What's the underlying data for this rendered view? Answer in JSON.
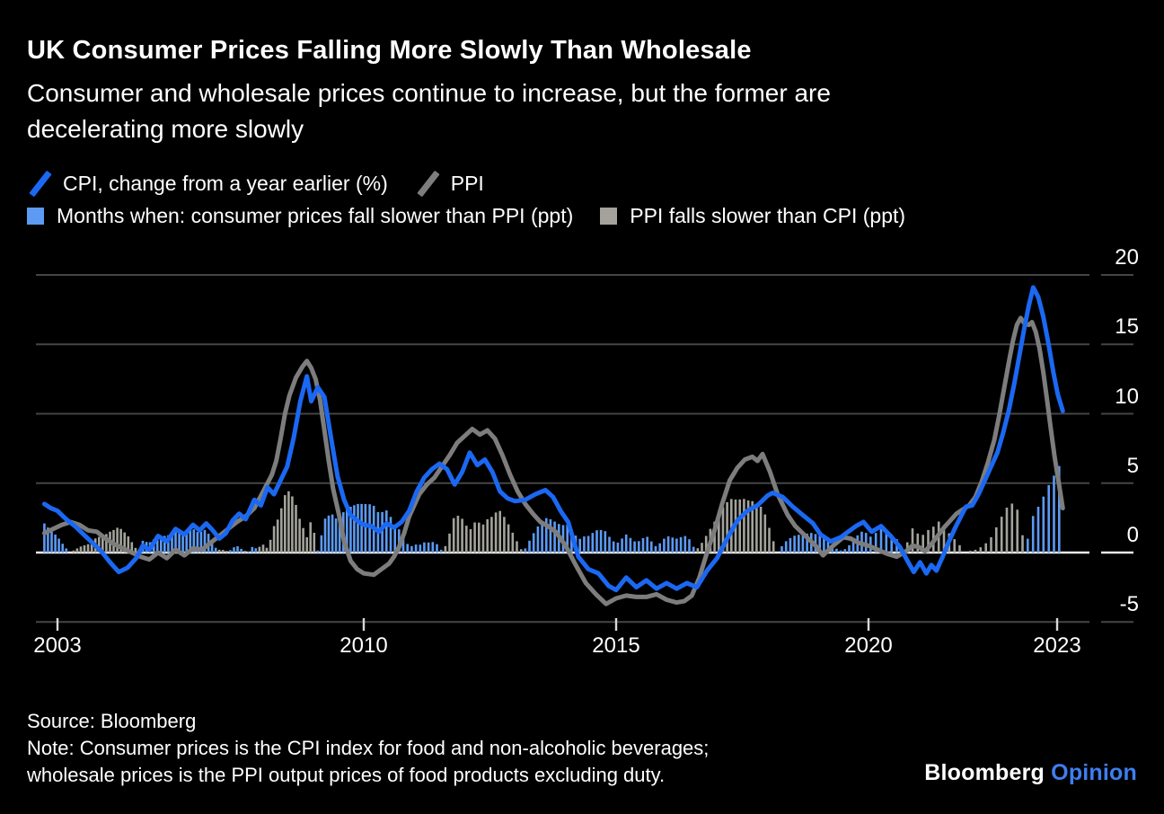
{
  "header": {
    "title": "UK Consumer Prices Falling More Slowly Than Wholesale",
    "subtitle_line1": "Consumer and wholesale prices continue to increase, but the former are",
    "subtitle_line2": "decelerating more slowly"
  },
  "legend": {
    "cpi_line_label": "CPI, change from a year earlier (%)",
    "ppi_line_label": "PPI",
    "cpi_bar_label": "Months when: consumer prices fall slower than PPI (ppt)",
    "ppi_bar_label": "PPI falls slower than CPI (ppt)"
  },
  "colors": {
    "cpi_line": "#1b68f2",
    "ppi_line": "#7d7d7d",
    "cpi_bar": "#5c9af3",
    "ppi_bar": "#a3a39c",
    "grid": "#454545",
    "zero_line": "#e8e8e8",
    "tick": "#d9d9d9",
    "text": "#ffffff",
    "opinion_blue": "#3e7ef0"
  },
  "chart_data": {
    "type": "line+bar",
    "title": "UK Consumer Prices Falling More Slowly Than Wholesale",
    "y_axis": {
      "ticks": [
        20,
        15,
        10,
        5,
        0,
        -5
      ],
      "ylim": [
        -6.5,
        20.5
      ],
      "unit": "%",
      "grid": true,
      "side": "right"
    },
    "x_axis": {
      "ticks": [
        2003,
        2010,
        2015,
        2020,
        2023
      ],
      "range": [
        2002.7,
        2023.1
      ],
      "resolution": "monthly"
    },
    "series": [
      {
        "id": "cpi",
        "name": "CPI, change from a year earlier (%)",
        "type": "line",
        "color": "#1b68f2",
        "points": [
          [
            2002.7,
            3.5
          ],
          [
            2002.85,
            3.2
          ],
          [
            2003.0,
            3.0
          ],
          [
            2003.2,
            2.4
          ],
          [
            2003.4,
            1.9
          ],
          [
            2003.6,
            1.3
          ],
          [
            2003.8,
            0.7
          ],
          [
            2004.0,
            0.1
          ],
          [
            2004.2,
            -0.7
          ],
          [
            2004.4,
            -1.4
          ],
          [
            2004.6,
            -1.1
          ],
          [
            2004.8,
            -0.4
          ],
          [
            2004.95,
            0.5
          ],
          [
            2005.1,
            0.2
          ],
          [
            2005.3,
            1.2
          ],
          [
            2005.5,
            0.8
          ],
          [
            2005.7,
            1.7
          ],
          [
            2005.9,
            1.3
          ],
          [
            2006.1,
            2.0
          ],
          [
            2006.25,
            1.6
          ],
          [
            2006.4,
            2.1
          ],
          [
            2006.55,
            1.6
          ],
          [
            2006.7,
            1.0
          ],
          [
            2006.85,
            1.4
          ],
          [
            2007.0,
            2.3
          ],
          [
            2007.15,
            2.8
          ],
          [
            2007.3,
            2.4
          ],
          [
            2007.5,
            3.8
          ],
          [
            2007.65,
            3.4
          ],
          [
            2007.8,
            4.7
          ],
          [
            2007.95,
            4.2
          ],
          [
            2008.1,
            5.2
          ],
          [
            2008.25,
            6.2
          ],
          [
            2008.4,
            8.3
          ],
          [
            2008.55,
            10.9
          ],
          [
            2008.7,
            12.7
          ],
          [
            2008.8,
            10.9
          ],
          [
            2008.95,
            11.9
          ],
          [
            2009.1,
            11.2
          ],
          [
            2009.25,
            8.3
          ],
          [
            2009.4,
            5.5
          ],
          [
            2009.55,
            3.8
          ],
          [
            2009.7,
            2.7
          ],
          [
            2009.85,
            2.3
          ],
          [
            2010.0,
            2.0
          ],
          [
            2010.15,
            1.9
          ],
          [
            2010.3,
            1.5
          ],
          [
            2010.45,
            2.1
          ],
          [
            2010.6,
            1.8
          ],
          [
            2010.75,
            2.2
          ],
          [
            2010.9,
            3.0
          ],
          [
            2011.05,
            4.4
          ],
          [
            2011.2,
            5.4
          ],
          [
            2011.35,
            6.0
          ],
          [
            2011.5,
            6.4
          ],
          [
            2011.65,
            6.0
          ],
          [
            2011.8,
            4.9
          ],
          [
            2011.95,
            5.8
          ],
          [
            2012.1,
            7.2
          ],
          [
            2012.25,
            6.3
          ],
          [
            2012.4,
            6.7
          ],
          [
            2012.55,
            5.8
          ],
          [
            2012.7,
            4.4
          ],
          [
            2012.85,
            3.9
          ],
          [
            2013.0,
            3.7
          ],
          [
            2013.2,
            3.8
          ],
          [
            2013.4,
            4.2
          ],
          [
            2013.6,
            4.5
          ],
          [
            2013.75,
            4.0
          ],
          [
            2013.9,
            3.0
          ],
          [
            2014.05,
            2.2
          ],
          [
            2014.25,
            -0.3
          ],
          [
            2014.45,
            -1.2
          ],
          [
            2014.65,
            -1.5
          ],
          [
            2014.85,
            -2.4
          ],
          [
            2015.0,
            -2.7
          ],
          [
            2015.2,
            -1.8
          ],
          [
            2015.4,
            -2.5
          ],
          [
            2015.6,
            -2.0
          ],
          [
            2015.8,
            -2.6
          ],
          [
            2016.0,
            -2.2
          ],
          [
            2016.2,
            -2.6
          ],
          [
            2016.4,
            -2.2
          ],
          [
            2016.6,
            -2.5
          ],
          [
            2016.8,
            -1.3
          ],
          [
            2017.0,
            -0.4
          ],
          [
            2017.2,
            1.0
          ],
          [
            2017.4,
            2.3
          ],
          [
            2017.6,
            3.0
          ],
          [
            2017.8,
            3.4
          ],
          [
            2018.0,
            4.1
          ],
          [
            2018.1,
            4.3
          ],
          [
            2018.3,
            4.0
          ],
          [
            2018.5,
            3.3
          ],
          [
            2018.7,
            2.7
          ],
          [
            2018.9,
            2.1
          ],
          [
            2019.05,
            1.3
          ],
          [
            2019.25,
            0.8
          ],
          [
            2019.45,
            1.1
          ],
          [
            2019.6,
            1.5
          ],
          [
            2019.75,
            1.9
          ],
          [
            2019.9,
            2.2
          ],
          [
            2020.05,
            1.5
          ],
          [
            2020.2,
            1.9
          ],
          [
            2020.35,
            1.2
          ],
          [
            2020.5,
            0.4
          ],
          [
            2020.62,
            -0.6
          ],
          [
            2020.72,
            -1.4
          ],
          [
            2020.82,
            -0.7
          ],
          [
            2020.92,
            -1.5
          ],
          [
            2021.0,
            -0.9
          ],
          [
            2021.08,
            -1.3
          ],
          [
            2021.18,
            -0.3
          ],
          [
            2021.28,
            0.8
          ],
          [
            2021.38,
            1.8
          ],
          [
            2021.47,
            2.6
          ],
          [
            2021.55,
            3.3
          ],
          [
            2021.65,
            3.4
          ],
          [
            2021.75,
            4.2
          ],
          [
            2021.85,
            5.2
          ],
          [
            2021.95,
            6.2
          ],
          [
            2022.05,
            7.2
          ],
          [
            2022.14,
            8.6
          ],
          [
            2022.23,
            10.2
          ],
          [
            2022.32,
            12.2
          ],
          [
            2022.4,
            14.2
          ],
          [
            2022.48,
            16.2
          ],
          [
            2022.55,
            17.8
          ],
          [
            2022.62,
            19.1
          ],
          [
            2022.7,
            18.4
          ],
          [
            2022.78,
            17.0
          ],
          [
            2022.86,
            15.1
          ],
          [
            2022.94,
            13.0
          ],
          [
            2023.01,
            11.4
          ],
          [
            2023.09,
            10.2
          ]
        ]
      },
      {
        "id": "ppi",
        "name": "PPI",
        "type": "line",
        "color": "#7d7d7d",
        "points": [
          [
            2002.7,
            1.4
          ],
          [
            2002.9,
            1.7
          ],
          [
            2003.1,
            2.0
          ],
          [
            2003.3,
            2.2
          ],
          [
            2003.5,
            2.0
          ],
          [
            2003.7,
            1.6
          ],
          [
            2003.9,
            1.5
          ],
          [
            2004.1,
            1.0
          ],
          [
            2004.3,
            0.6
          ],
          [
            2004.5,
            0.3
          ],
          [
            2004.7,
            0.0
          ],
          [
            2004.9,
            -0.3
          ],
          [
            2005.1,
            -0.5
          ],
          [
            2005.3,
            0.0
          ],
          [
            2005.5,
            -0.4
          ],
          [
            2005.7,
            0.2
          ],
          [
            2005.9,
            -0.2
          ],
          [
            2006.1,
            0.3
          ],
          [
            2006.3,
            0.2
          ],
          [
            2006.5,
            0.7
          ],
          [
            2006.7,
            1.2
          ],
          [
            2006.9,
            1.7
          ],
          [
            2007.1,
            2.2
          ],
          [
            2007.3,
            2.6
          ],
          [
            2007.5,
            3.2
          ],
          [
            2007.7,
            4.4
          ],
          [
            2007.9,
            5.6
          ],
          [
            2008.0,
            6.6
          ],
          [
            2008.1,
            8.2
          ],
          [
            2008.2,
            10.0
          ],
          [
            2008.3,
            11.3
          ],
          [
            2008.45,
            12.6
          ],
          [
            2008.6,
            13.4
          ],
          [
            2008.7,
            13.8
          ],
          [
            2008.8,
            13.3
          ],
          [
            2008.9,
            12.5
          ],
          [
            2009.0,
            11.0
          ],
          [
            2009.1,
            8.8
          ],
          [
            2009.2,
            6.6
          ],
          [
            2009.3,
            4.6
          ],
          [
            2009.45,
            2.5
          ],
          [
            2009.55,
            0.8
          ],
          [
            2009.7,
            -0.6
          ],
          [
            2009.85,
            -1.2
          ],
          [
            2010.0,
            -1.5
          ],
          [
            2010.2,
            -1.6
          ],
          [
            2010.35,
            -1.2
          ],
          [
            2010.5,
            -0.8
          ],
          [
            2010.6,
            -0.3
          ],
          [
            2010.7,
            0.4
          ],
          [
            2010.8,
            1.4
          ],
          [
            2010.9,
            2.6
          ],
          [
            2011.0,
            3.4
          ],
          [
            2011.1,
            4.2
          ],
          [
            2011.25,
            4.9
          ],
          [
            2011.4,
            5.4
          ],
          [
            2011.55,
            6.2
          ],
          [
            2011.7,
            7.0
          ],
          [
            2011.85,
            7.9
          ],
          [
            2012.0,
            8.4
          ],
          [
            2012.15,
            8.9
          ],
          [
            2012.3,
            8.5
          ],
          [
            2012.45,
            8.8
          ],
          [
            2012.6,
            8.2
          ],
          [
            2012.75,
            7.0
          ],
          [
            2012.9,
            5.6
          ],
          [
            2013.05,
            4.4
          ],
          [
            2013.2,
            3.5
          ],
          [
            2013.35,
            2.8
          ],
          [
            2013.5,
            2.2
          ],
          [
            2013.65,
            1.9
          ],
          [
            2013.8,
            1.5
          ],
          [
            2014.0,
            0.5
          ],
          [
            2014.2,
            -0.9
          ],
          [
            2014.4,
            -2.2
          ],
          [
            2014.6,
            -3.0
          ],
          [
            2014.8,
            -3.7
          ],
          [
            2015.0,
            -3.3
          ],
          [
            2015.2,
            -3.1
          ],
          [
            2015.4,
            -3.2
          ],
          [
            2015.6,
            -3.2
          ],
          [
            2015.8,
            -3.0
          ],
          [
            2016.0,
            -3.4
          ],
          [
            2016.2,
            -3.6
          ],
          [
            2016.35,
            -3.5
          ],
          [
            2016.5,
            -3.1
          ],
          [
            2016.65,
            -1.8
          ],
          [
            2016.8,
            0.0
          ],
          [
            2016.95,
            1.6
          ],
          [
            2017.1,
            3.5
          ],
          [
            2017.25,
            5.2
          ],
          [
            2017.4,
            6.1
          ],
          [
            2017.55,
            6.7
          ],
          [
            2017.7,
            6.9
          ],
          [
            2017.8,
            6.6
          ],
          [
            2017.9,
            7.1
          ],
          [
            2018.05,
            5.8
          ],
          [
            2018.2,
            4.2
          ],
          [
            2018.4,
            2.7
          ],
          [
            2018.55,
            1.9
          ],
          [
            2018.75,
            1.2
          ],
          [
            2018.95,
            0.5
          ],
          [
            2019.1,
            -0.2
          ],
          [
            2019.3,
            0.5
          ],
          [
            2019.5,
            1.1
          ],
          [
            2019.65,
            1.0
          ],
          [
            2019.8,
            0.7
          ],
          [
            2020.0,
            0.5
          ],
          [
            2020.15,
            0.2
          ],
          [
            2020.3,
            -0.1
          ],
          [
            2020.45,
            -0.3
          ],
          [
            2020.6,
            0.1
          ],
          [
            2020.7,
            0.5
          ],
          [
            2020.8,
            0.4
          ],
          [
            2020.9,
            0.1
          ],
          [
            2021.0,
            0.6
          ],
          [
            2021.1,
            1.2
          ],
          [
            2021.2,
            1.8
          ],
          [
            2021.3,
            2.3
          ],
          [
            2021.4,
            2.8
          ],
          [
            2021.5,
            3.1
          ],
          [
            2021.6,
            3.4
          ],
          [
            2021.7,
            4.0
          ],
          [
            2021.8,
            5.1
          ],
          [
            2021.9,
            6.5
          ],
          [
            2022.0,
            8.1
          ],
          [
            2022.08,
            9.9
          ],
          [
            2022.16,
            11.9
          ],
          [
            2022.24,
            13.9
          ],
          [
            2022.3,
            15.3
          ],
          [
            2022.36,
            16.4
          ],
          [
            2022.42,
            16.9
          ],
          [
            2022.48,
            16.5
          ],
          [
            2022.55,
            16.4
          ],
          [
            2022.6,
            16.6
          ],
          [
            2022.66,
            15.9
          ],
          [
            2022.72,
            14.7
          ],
          [
            2022.78,
            13.0
          ],
          [
            2022.84,
            11.0
          ],
          [
            2022.9,
            8.9
          ],
          [
            2022.96,
            6.9
          ],
          [
            2023.02,
            5.2
          ],
          [
            2023.09,
            3.2
          ]
        ]
      }
    ],
    "bars": {
      "type": "bar",
      "derived_from": "cpi_minus_ppi_monthly",
      "blue_label": "Months when: consumer prices fall slower than PPI (ppt)",
      "gray_label": "PPI falls slower than CPI (ppt)",
      "colors": {
        "blue": "#5c9af3",
        "gray": "#a3a39c"
      },
      "min_visible_ppt": 0.06
    },
    "legend_position": "top"
  },
  "footer": {
    "source": "Source: Bloomberg",
    "note_line1": "Note: Consumer prices is the CPI index for food and non-alcoholic beverages;",
    "note_line2": "wholesale prices is the PPI output prices of food products excluding duty.",
    "logo_bloomberg": "Bloomberg",
    "logo_opinion": "Opinion"
  }
}
